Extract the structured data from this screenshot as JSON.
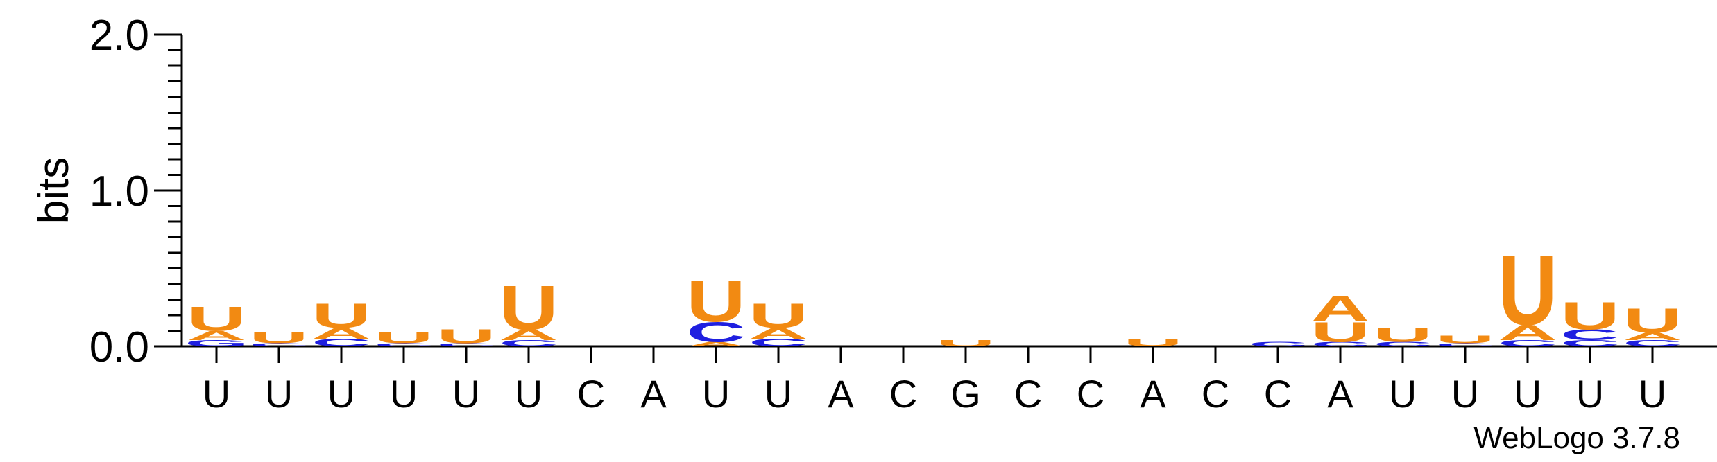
{
  "chart_data": {
    "type": "sequence-logo",
    "ylabel": "bits",
    "ylim": [
      0,
      2.0
    ],
    "yticks": [
      {
        "value": 0,
        "label": "0.0"
      },
      {
        "value": 1,
        "label": "1.0"
      },
      {
        "value": 2,
        "label": "2.0"
      }
    ],
    "consensus": [
      "U",
      "U",
      "U",
      "U",
      "U",
      "U",
      "C",
      "A",
      "U",
      "U",
      "A",
      "C",
      "G",
      "C",
      "C",
      "A",
      "C",
      "C",
      "A",
      "U",
      "U",
      "U",
      "U",
      "U"
    ],
    "colors": {
      "U": "#f28a12",
      "A": "#f28a12",
      "C": "#1f1fe0",
      "G": "#1f1fe0"
    },
    "stacks": [
      [
        {
          "letter": "G",
          "bits": 0.04
        },
        {
          "letter": "A",
          "bits": 0.06
        },
        {
          "letter": "U",
          "bits": 0.16
        }
      ],
      [
        {
          "letter": "C",
          "bits": 0.02
        },
        {
          "letter": "U",
          "bits": 0.07
        }
      ],
      [
        {
          "letter": "C",
          "bits": 0.05
        },
        {
          "letter": "A",
          "bits": 0.07
        },
        {
          "letter": "U",
          "bits": 0.16
        }
      ],
      [
        {
          "letter": "C",
          "bits": 0.02
        },
        {
          "letter": "U",
          "bits": 0.07
        }
      ],
      [
        {
          "letter": "C",
          "bits": 0.02
        },
        {
          "letter": "U",
          "bits": 0.09
        }
      ],
      [
        {
          "letter": "C",
          "bits": 0.04
        },
        {
          "letter": "A",
          "bits": 0.07
        },
        {
          "letter": "U",
          "bits": 0.29
        }
      ],
      [],
      [],
      [
        {
          "letter": "A",
          "bits": 0.03
        },
        {
          "letter": "C",
          "bits": 0.13
        },
        {
          "letter": "U",
          "bits": 0.27
        }
      ],
      [
        {
          "letter": "C",
          "bits": 0.05
        },
        {
          "letter": "A",
          "bits": 0.07
        },
        {
          "letter": "U",
          "bits": 0.16
        }
      ],
      [],
      [],
      [
        {
          "letter": "U",
          "bits": 0.04
        }
      ],
      [],
      [],
      [
        {
          "letter": "U",
          "bits": 0.05
        }
      ],
      [],
      [
        {
          "letter": "C",
          "bits": 0.03
        }
      ],
      [
        {
          "letter": "C",
          "bits": 0.03
        },
        {
          "letter": "U",
          "bits": 0.13
        },
        {
          "letter": "A",
          "bits": 0.17
        }
      ],
      [
        {
          "letter": "C",
          "bits": 0.03
        },
        {
          "letter": "U",
          "bits": 0.09
        }
      ],
      [
        {
          "letter": "C",
          "bits": 0.02
        },
        {
          "letter": "U",
          "bits": 0.05
        }
      ],
      [
        {
          "letter": "C",
          "bits": 0.04
        },
        {
          "letter": "A",
          "bits": 0.1
        },
        {
          "letter": "U",
          "bits": 0.46
        }
      ],
      [
        {
          "letter": "C",
          "bits": 0.04
        },
        {
          "letter": "C",
          "bits": 0.07
        },
        {
          "letter": "U",
          "bits": 0.18
        }
      ],
      [
        {
          "letter": "C",
          "bits": 0.04
        },
        {
          "letter": "A",
          "bits": 0.05
        },
        {
          "letter": "U",
          "bits": 0.16
        }
      ]
    ]
  },
  "credit": "WebLogo 3.7.8"
}
